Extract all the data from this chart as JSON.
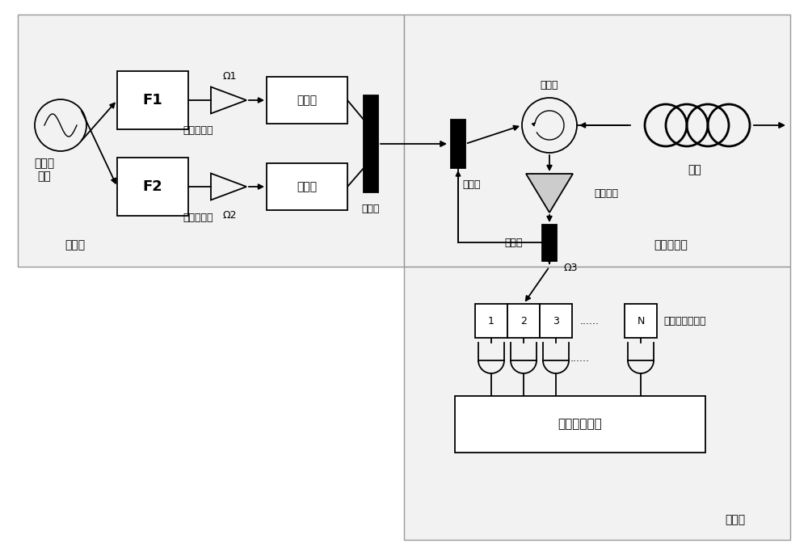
{
  "figsize": [
    10.0,
    6.88
  ],
  "dpi": 100,
  "lc": "#000000",
  "section_lc": "#888888",
  "section_fc": "#eeeeee",
  "box_fc": "#ffffff",
  "labels": {
    "freq_source": "频率参\n考源",
    "F1": "F1",
    "F2": "F2",
    "laser1": "激光器",
    "laser2": "激光器",
    "amp1_label": "功率放大器",
    "amp2_label": "功率放大器",
    "coupler1": "耦合器",
    "coupler2": "耦合器",
    "coupler3": "耦合器",
    "circulator": "环形器",
    "opt_amp": "光放大器",
    "link": "链路",
    "demux_label": "器波分复用分束",
    "monitor": "信号监视系统",
    "section1": "传输部",
    "section2": "信号返回部",
    "section3": "监视部",
    "omega1": "Ω1",
    "omega2": "Ω2",
    "omega3": "Ω3",
    "N": "N",
    "dots": "......"
  }
}
